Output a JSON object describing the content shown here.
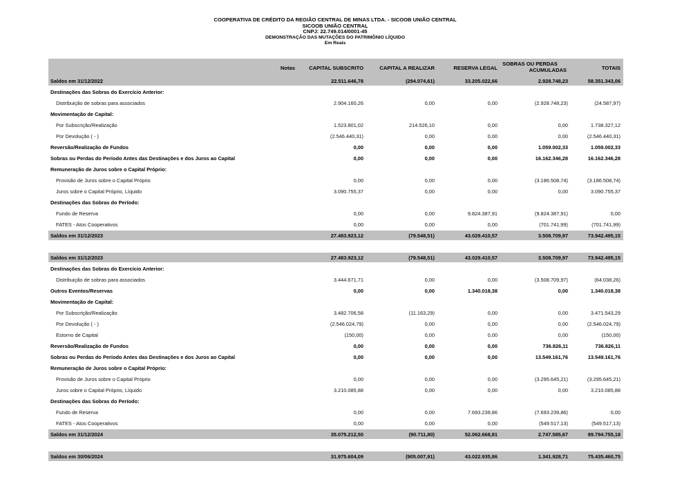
{
  "header": {
    "company": "COOPERATIVA DE CRÉDITO DA REGIÃO CENTRAL DE MINAS LTDA. - SICOOB UNIÃO CENTRAL",
    "brand": "SICOOB UNIÃO CENTRAL",
    "cnpj": "CNPJ: 22.749.014/0001-45",
    "title": "DEMONSTRAÇÃO DAS MUTAÇÕES DO PATRIMÔNIO LÍQUIDO",
    "unit": "Em Reais"
  },
  "columns": {
    "notas": "Notas",
    "capital_subscrito": "CAPITAL SUBSCRITO",
    "capital_a_realizar": "CAPITAL A REALIZAR",
    "reserva_legal": "RESERVA LEGAL",
    "sobras_line1": "SOBRAS OU PERDAS",
    "sobras_line2": "ACUMULADAS",
    "totais": "TOTAIS"
  },
  "rows": [
    {
      "type": "balance",
      "label": "Saldos em 31/12/2022",
      "values": [
        "22.511.646,78",
        "(294.074,61)",
        "33.205.022,66",
        "2.928.748,23",
        "58.351.343,06"
      ]
    },
    {
      "type": "section",
      "label": "Destinações das Sobras do Exercício Anterior:"
    },
    {
      "type": "item",
      "label": "Distribuição de sobras para associados",
      "values": [
        "2.904.160,26",
        "0,00",
        "0,00",
        "(2.928.748,23)",
        "(24.587,97)"
      ]
    },
    {
      "type": "section",
      "label": "Movimentação de Capital:"
    },
    {
      "type": "item",
      "label": "Por Subscrição/Realização",
      "values": [
        "1.523.801,02",
        "214.526,10",
        "0,00",
        "0,00",
        "1.738.327,12"
      ]
    },
    {
      "type": "item",
      "label": "Por  Devolução ( - )",
      "values": [
        "(2.546.440,31)",
        "0,00",
        "0,00",
        "0,00",
        "(2.546.440,31)"
      ]
    },
    {
      "type": "bold",
      "label": "Reversão/Realização de Fundos",
      "values": [
        "0,00",
        "0,00",
        "0,00",
        "1.059.002,33",
        "1.059.002,33"
      ]
    },
    {
      "type": "bold",
      "label": "Sobras ou Perdas do Período Antes das Destinações e dos Juros ao Capital",
      "values": [
        "0,00",
        "0,00",
        "0,00",
        "16.162.346,28",
        "16.162.346,28"
      ]
    },
    {
      "type": "section",
      "label": "Remuneração de Juros sobre o Capital Próprio:"
    },
    {
      "type": "item",
      "label": "Provisão de Juros sobre o Capital Próprio",
      "values": [
        "0,00",
        "0,00",
        "0,00",
        "(3.186.508,74)",
        "(3.186.508,74)"
      ]
    },
    {
      "type": "item",
      "label": "Juros sobre o Capital Próprio, Líquido",
      "values": [
        "3.090.755,37",
        "0,00",
        "0,00",
        "0,00",
        "3.090.755,37"
      ]
    },
    {
      "type": "section",
      "label": "Destinações das Sobras do Período:"
    },
    {
      "type": "item",
      "label": "Fundo de Reserva",
      "values": [
        "0,00",
        "0,00",
        "9.824.387,91",
        "(9.824.387,91)",
        "0,00"
      ]
    },
    {
      "type": "item",
      "label": "FATES - Atos Cooperativos",
      "values": [
        "0,00",
        "0,00",
        "0,00",
        "(701.741,99)",
        "(701.741,99)"
      ]
    },
    {
      "type": "balance",
      "label": "Saldos em 31/12/2023",
      "values": [
        "27.483.923,12",
        "(79.548,51)",
        "43.029.410,57",
        "3.508.709,97",
        "73.942.495,15"
      ]
    },
    {
      "type": "spacer"
    },
    {
      "type": "balance",
      "label": "Saldos em 31/12/2023",
      "values": [
        "27.483.923,12",
        "(79.548,51)",
        "43.029.410,57",
        "3.508.709,97",
        "73.942.495,15"
      ]
    },
    {
      "type": "section",
      "label": "Destinações das Sobras do Exercício Anterior:"
    },
    {
      "type": "item",
      "label": "Distribuição de sobras para associados",
      "values": [
        "3.444.671,71",
        "0,00",
        "0,00",
        "(3.508.709,97)",
        "(64.038,26)"
      ]
    },
    {
      "type": "bold",
      "label": "Outros Eventos/Reservas",
      "values": [
        "0,00",
        "0,00",
        "1.340.018,38",
        "0,00",
        "1.340.018,38"
      ]
    },
    {
      "type": "section",
      "label": "Movimentação de Capital:"
    },
    {
      "type": "item",
      "label": "Por Subscrição/Realização",
      "values": [
        "3.482.706,58",
        "(11.163,29)",
        "0,00",
        "0,00",
        "3.471.543,29"
      ]
    },
    {
      "type": "item",
      "label": "Por  Devolução ( - )",
      "values": [
        "(2.546.024,79)",
        "0,00",
        "0,00",
        "0,00",
        "(2.546.024,79)"
      ]
    },
    {
      "type": "item",
      "label": "Estorno de Capital",
      "values": [
        "(150,00)",
        "0,00",
        "0,00",
        "0,00",
        "(150,00)"
      ]
    },
    {
      "type": "bold",
      "label": "Reversão/Realização de Fundos",
      "values": [
        "0,00",
        "0,00",
        "0,00",
        "736.826,11",
        "736.826,11"
      ]
    },
    {
      "type": "bold",
      "label": "Sobras ou Perdas do Período Antes das Destinações e dos Juros ao Capital",
      "values": [
        "0,00",
        "0,00",
        "0,00",
        "13.549.161,76",
        "13.549.161,76"
      ]
    },
    {
      "type": "section",
      "label": "Remuneração de Juros sobre o Capital Próprio:"
    },
    {
      "type": "item",
      "label": "Provisão de Juros sobre o Capital Próprio",
      "values": [
        "0,00",
        "0,00",
        "0,00",
        "(3.295.645,21)",
        "(3.295.645,21)"
      ]
    },
    {
      "type": "item",
      "label": "Juros sobre o Capital Próprio, Líquido",
      "values": [
        "3.210.085,88",
        "0,00",
        "0,00",
        "0,00",
        "3.210.085,88"
      ]
    },
    {
      "type": "section",
      "label": "Destinações das Sobras do Período:"
    },
    {
      "type": "item",
      "label": "Fundo de Reserva",
      "values": [
        "0,00",
        "0,00",
        "7.693.239,86",
        "(7.693.239,86)",
        "0,00"
      ]
    },
    {
      "type": "item",
      "label": "FATES - Atos Cooperativos",
      "values": [
        "0,00",
        "0,00",
        "0,00",
        "(549.517,13)",
        "(549.517,13)"
      ]
    },
    {
      "type": "balance",
      "label": "Saldos em 31/12/2024",
      "values": [
        "35.075.212,50",
        "(90.711,80)",
        "52.062.668,81",
        "2.747.585,67",
        "89.794.755,18"
      ]
    },
    {
      "type": "spacer"
    },
    {
      "type": "balance",
      "label": "Saldos em 30/06/2024",
      "values": [
        "31.975.604,09",
        "(905.007,91)",
        "43.022.935,86",
        "1.341.928,71",
        "75.435.460,75"
      ]
    }
  ]
}
